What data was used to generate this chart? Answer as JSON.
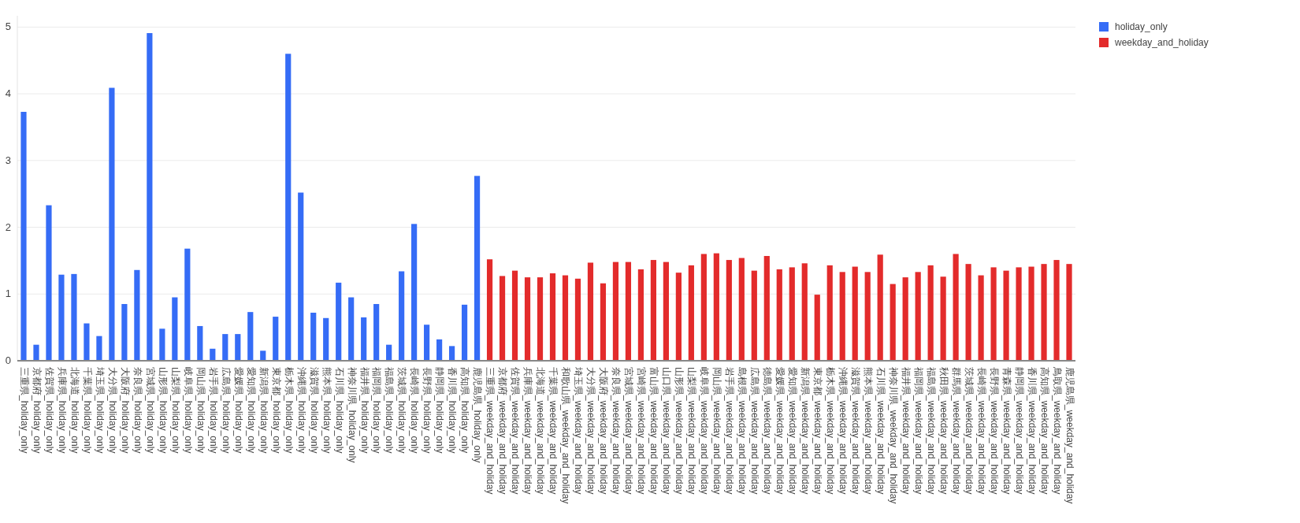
{
  "chart_data": {
    "type": "bar",
    "categories": [
      "三重県_holiday_only",
      "京都府_holiday_only",
      "佐賀県_holiday_only",
      "兵庫県_holiday_only",
      "北海道_holiday_only",
      "千葉県_holiday_only",
      "埼玉県_holiday_only",
      "大分県_holiday_only",
      "大阪府_holiday_only",
      "奈良県_holiday_only",
      "宮城県_holiday_only",
      "山形県_holiday_only",
      "山梨県_holiday_only",
      "岐阜県_holiday_only",
      "岡山県_holiday_only",
      "岩手県_holiday_only",
      "広島県_holiday_only",
      "愛媛県_holiday_only",
      "愛知県_holiday_only",
      "新潟県_holiday_only",
      "東京都_holiday_only",
      "栃木県_holiday_only",
      "沖縄県_holiday_only",
      "滋賀県_holiday_only",
      "熊本県_holiday_only",
      "石川県_holiday_only",
      "神奈川県_holiday_only",
      "福井県_holiday_only",
      "福岡県_holiday_only",
      "福島県_holiday_only",
      "茨城県_holiday_only",
      "長崎県_holiday_only",
      "長野県_holiday_only",
      "静岡県_holiday_only",
      "香川県_holiday_only",
      "高知県_holiday_only",
      "鹿児島県_holiday_only",
      "三重県_weekday_and_holiday",
      "京都府_weekday_and_holiday",
      "佐賀県_weekday_and_holiday",
      "兵庫県_weekday_and_holiday",
      "北海道_weekday_and_holiday",
      "千葉県_weekday_and_holiday",
      "和歌山県_weekday_and_holiday",
      "埼玉県_weekday_and_holiday",
      "大分県_weekday_and_holiday",
      "大阪府_weekday_and_holiday",
      "奈良県_weekday_and_holiday",
      "宮城県_weekday_and_holiday",
      "宮崎県_weekday_and_holiday",
      "富山県_weekday_and_holiday",
      "山口県_weekday_and_holiday",
      "山形県_weekday_and_holiday",
      "山梨県_weekday_and_holiday",
      "岐阜県_weekday_and_holiday",
      "岡山県_weekday_and_holiday",
      "岩手県_weekday_and_holiday",
      "島根県_weekday_and_holiday",
      "広島県_weekday_and_holiday",
      "徳島県_weekday_and_holiday",
      "愛媛県_weekday_and_holiday",
      "愛知県_weekday_and_holiday",
      "新潟県_weekday_and_holiday",
      "東京都_weekday_and_holiday",
      "栃木県_weekday_and_holiday",
      "沖縄県_weekday_and_holiday",
      "滋賀県_weekday_and_holiday",
      "熊本県_weekday_and_holiday",
      "石川県_weekday_and_holiday",
      "神奈川県_weekday_and_holiday",
      "福井県_weekday_and_holiday",
      "福岡県_weekday_and_holiday",
      "福島県_weekday_and_holiday",
      "秋田県_weekday_and_holiday",
      "群馬県_weekday_and_holiday",
      "茨城県_weekday_and_holiday",
      "長崎県_weekday_and_holiday",
      "長野県_weekday_and_holiday",
      "青森県_weekday_and_holiday",
      "静岡県_weekday_and_holiday",
      "香川県_weekday_and_holiday",
      "高知県_weekday_and_holiday",
      "鳥取県_weekday_and_holiday",
      "鹿児島県_weekday_and_holiday"
    ],
    "series": [
      {
        "name": "holiday_only",
        "color": "#356cf6",
        "values": [
          3.73,
          0.24,
          2.33,
          1.29,
          1.3,
          0.56,
          0.37,
          4.09,
          0.85,
          1.36,
          4.91,
          0.48,
          0.95,
          1.68,
          0.52,
          0.18,
          0.4,
          0.4,
          0.73,
          0.15,
          0.66,
          4.6,
          2.52,
          0.72,
          0.64,
          1.17,
          0.95,
          0.65,
          0.85,
          0.24,
          1.34,
          2.05,
          0.54,
          0.32,
          0.22,
          0.84,
          2.77,
          null,
          null,
          null,
          null,
          null,
          null,
          null,
          null,
          null,
          null,
          null,
          null,
          null,
          null,
          null,
          null,
          null,
          null,
          null,
          null,
          null,
          null,
          null,
          null,
          null,
          null,
          null,
          null,
          null,
          null,
          null,
          null,
          null,
          null,
          null,
          null,
          null,
          null,
          null,
          null,
          null,
          null,
          null,
          null,
          null,
          null,
          null
        ]
      },
      {
        "name": "weekday_and_holiday",
        "color": "#e32b2b",
        "values": [
          null,
          null,
          null,
          null,
          null,
          null,
          null,
          null,
          null,
          null,
          null,
          null,
          null,
          null,
          null,
          null,
          null,
          null,
          null,
          null,
          null,
          null,
          null,
          null,
          null,
          null,
          null,
          null,
          null,
          null,
          null,
          null,
          null,
          null,
          null,
          null,
          null,
          1.52,
          1.27,
          1.35,
          1.25,
          1.25,
          1.31,
          1.28,
          1.23,
          1.47,
          1.16,
          1.48,
          1.48,
          1.37,
          1.51,
          1.48,
          1.32,
          1.43,
          1.6,
          1.61,
          1.51,
          1.54,
          1.35,
          1.57,
          1.37,
          1.4,
          1.46,
          0.99,
          1.43,
          1.33,
          1.41,
          1.33,
          1.59,
          1.15,
          1.25,
          1.33,
          1.43,
          1.26,
          1.6,
          1.45,
          1.28,
          1.4,
          1.35,
          1.4,
          1.41,
          1.45,
          1.51,
          1.45
        ]
      }
    ],
    "ylim": [
      0,
      5.17
    ],
    "yticks": [
      0,
      1,
      2,
      3,
      4,
      5
    ],
    "grid": "y",
    "legend": "top right"
  }
}
